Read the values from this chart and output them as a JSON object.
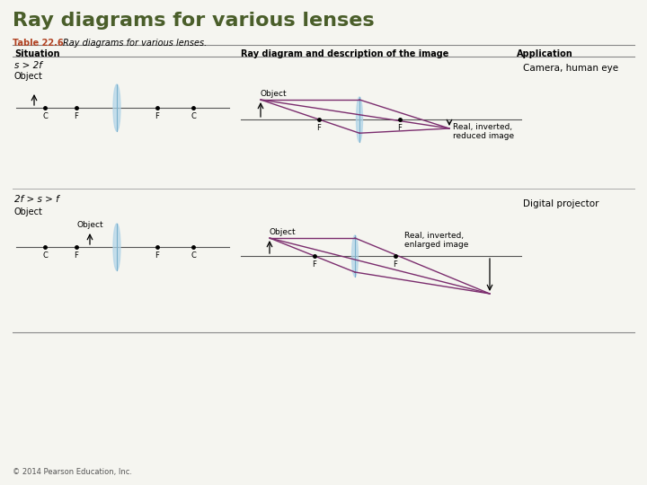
{
  "title": "Ray diagrams for various lenses",
  "title_color": "#4a5e2a",
  "title_fontsize": 16,
  "table_label": "Table 22.6",
  "table_label_color": "#b04020",
  "table_desc": "Ray diagrams for various lenses.",
  "col_headers": [
    "Situation",
    "Ray diagram and description of the image",
    "Application"
  ],
  "row1_situation": "s > 2f",
  "row2_situation": "2f > s > f",
  "row1_app": "Camera, human eye",
  "row2_app": "Digital projector",
  "row1_image_desc": "Real, inverted,\nreduced image",
  "row2_image_desc": "Real, inverted,\nenlarged image",
  "ray_color": "#7b2d6e",
  "lens_color": "#b0d4e8",
  "axis_color": "#555555",
  "bg_color": "#f5f5f0",
  "copyright": "© 2014 Pearson Education, Inc."
}
